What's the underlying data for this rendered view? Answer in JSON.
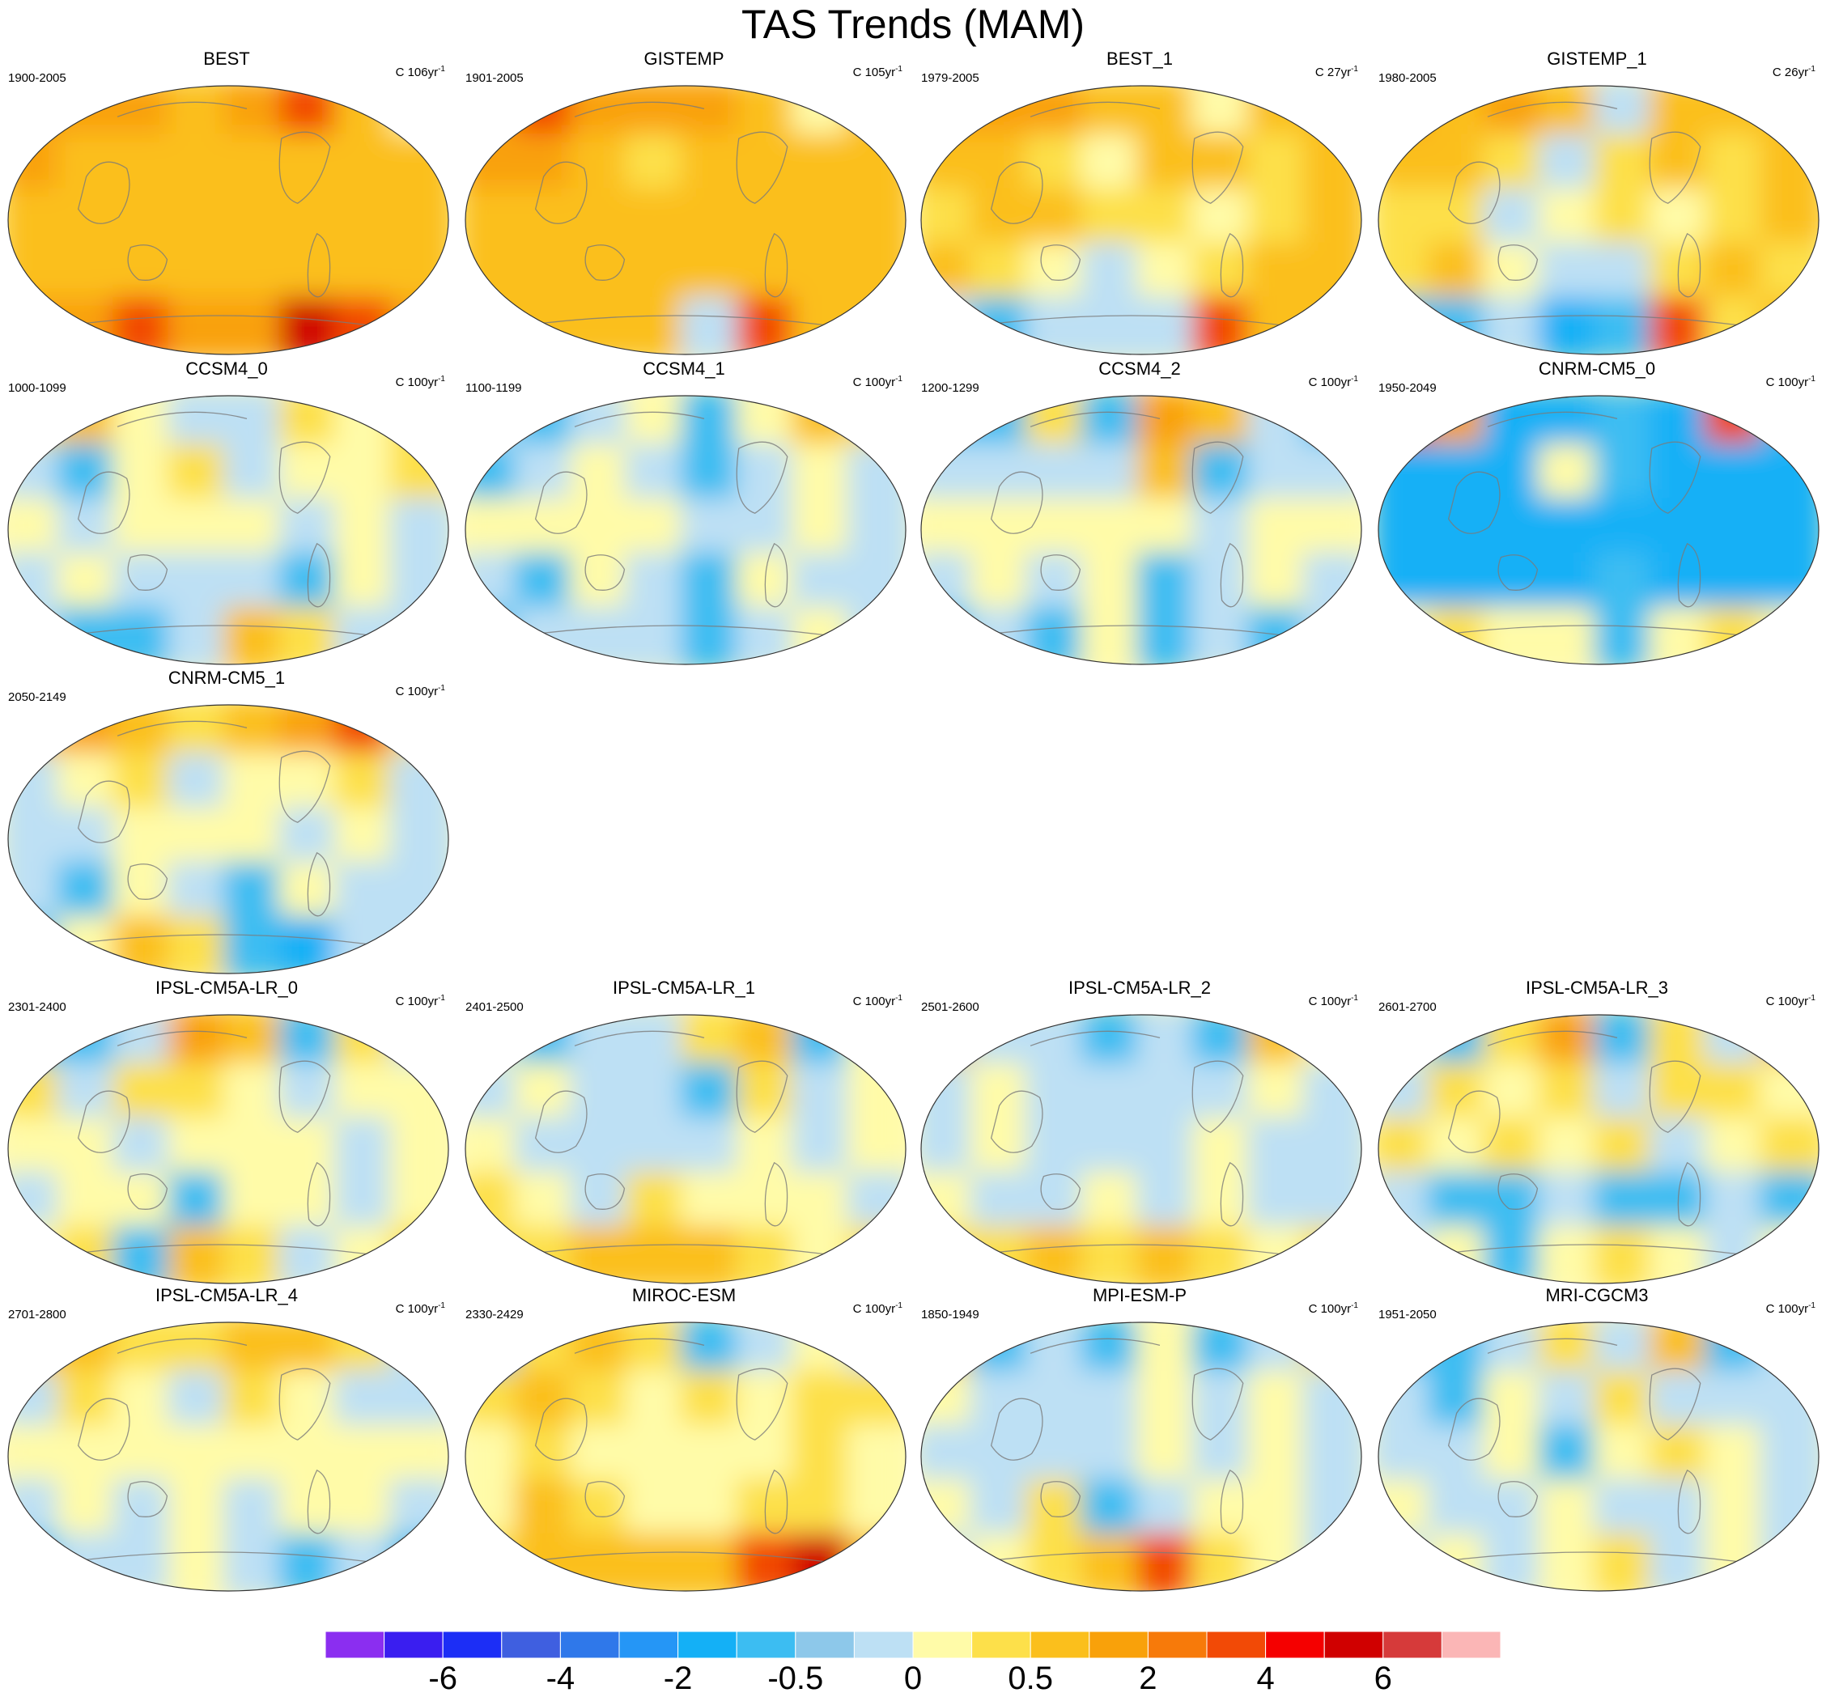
{
  "title": "TAS Trends (MAM)",
  "panels": [
    {
      "name": "BEST",
      "period": "1900-2005",
      "units": "C 106yr",
      "units_exp": "-1",
      "field": [
        [
          "4",
          "4",
          "4",
          "3",
          "4",
          "5",
          "3",
          "1"
        ],
        [
          "4",
          "3",
          "3",
          "3",
          "3",
          "3",
          "3",
          "3"
        ],
        [
          "3",
          "3",
          "3",
          "3",
          "3",
          "3",
          "3",
          "3"
        ],
        [
          "3",
          "3",
          "3",
          "3",
          "3",
          "3",
          "3",
          "3"
        ],
        [
          "4",
          "4",
          "5",
          "4",
          "4",
          "6",
          "5",
          "4"
        ]
      ],
      "polar": "strong"
    },
    {
      "name": "GISTEMP",
      "period": "1901-2005",
      "units": "C 105yr",
      "units_exp": "-1",
      "field": [
        [
          "4",
          "5",
          "4",
          "4",
          "4",
          "3",
          "1",
          "3"
        ],
        [
          "4",
          "4",
          "3",
          "2",
          "3",
          "3",
          "3",
          "3"
        ],
        [
          "3",
          "3",
          "3",
          "3",
          "3",
          "3",
          "3",
          "3"
        ],
        [
          "3",
          "3",
          "3",
          "3",
          "3",
          "3",
          "3",
          "3"
        ],
        [
          "3",
          "3",
          "3",
          "3",
          "-1",
          "5",
          "3",
          "3"
        ]
      ],
      "polar": "strong"
    },
    {
      "name": "BEST_1",
      "period": "1979-2005",
      "units": "C 27yr",
      "units_exp": "-1",
      "field": [
        [
          "4",
          "4",
          "4",
          "3",
          "3",
          "1",
          "3",
          "3"
        ],
        [
          "3",
          "3",
          "2",
          "1",
          "3",
          "3",
          "2",
          "3"
        ],
        [
          "2",
          "3",
          "3",
          "2",
          "2",
          "1",
          "2",
          "3"
        ],
        [
          "3",
          "2",
          "1",
          "-1",
          "1",
          "2",
          "3",
          "3"
        ],
        [
          "-1",
          "-2",
          "-1",
          "-1",
          "-1",
          "5",
          "3",
          "3"
        ]
      ],
      "polar": "mixed"
    },
    {
      "name": "GISTEMP_1",
      "period": "1980-2005",
      "units": "C 26yr",
      "units_exp": "-1",
      "field": [
        [
          "4",
          "3",
          "4",
          "3",
          "-1",
          "3",
          "3",
          "3"
        ],
        [
          "3",
          "3",
          "2",
          "-1",
          "2",
          "3",
          "2",
          "3"
        ],
        [
          "2",
          "2",
          "-1",
          "1",
          "2",
          "1",
          "2",
          "3"
        ],
        [
          "2",
          "3",
          "1",
          "-1",
          "-1",
          "2",
          "3",
          "2"
        ],
        [
          "-2",
          "-2",
          "-1",
          "-3",
          "-2",
          "5",
          "2",
          "3"
        ]
      ],
      "polar": "mixed"
    },
    {
      "name": "CCSM4_0",
      "period": "1000-1099",
      "units": "C 100yr",
      "units_exp": "-1",
      "field": [
        [
          "2",
          "3",
          "1",
          "-1",
          "-1",
          "2",
          "1",
          "2"
        ],
        [
          "-1",
          "-2",
          "1",
          "2",
          "-1",
          "1",
          "1",
          "2"
        ],
        [
          "1",
          "-1",
          "1",
          "1",
          "1",
          "-1",
          "1",
          "-1"
        ],
        [
          "-1",
          "1",
          "-1",
          "-1",
          "-1",
          "-2",
          "1",
          "-1"
        ],
        [
          "-1",
          "-2",
          "-2",
          "-1",
          "3",
          "2",
          "-1",
          "-1"
        ]
      ],
      "polar": "weak"
    },
    {
      "name": "CCSM4_1",
      "period": "1100-1199",
      "units": "C 100yr",
      "units_exp": "-1",
      "field": [
        [
          "-1",
          "-2",
          "-1",
          "1",
          "-2",
          "1",
          "3",
          "2"
        ],
        [
          "-2",
          "-1",
          "1",
          "-1",
          "-2",
          "-1",
          "1",
          "-1"
        ],
        [
          "1",
          "1",
          "1",
          "1",
          "-1",
          "-1",
          "1",
          "-1"
        ],
        [
          "-1",
          "-2",
          "1",
          "-1",
          "-2",
          "1",
          "-1",
          "-1"
        ],
        [
          "-2",
          "-1",
          "-1",
          "-1",
          "-2",
          "-1",
          "1",
          "-1"
        ]
      ],
      "polar": "weak"
    },
    {
      "name": "CCSM4_2",
      "period": "1200-1299",
      "units": "C 100yr",
      "units_exp": "-1",
      "field": [
        [
          "-2",
          "-2",
          "2",
          "-2",
          "4",
          "3",
          "-1",
          "-2"
        ],
        [
          "-1",
          "-1",
          "-1",
          "-1",
          "3",
          "-2",
          "-1",
          "-1"
        ],
        [
          "1",
          "1",
          "1",
          "1",
          "1",
          "-1",
          "1",
          "1"
        ],
        [
          "-1",
          "1",
          "-1",
          "1",
          "-2",
          "-1",
          "1",
          "-1"
        ],
        [
          "-2",
          "-1",
          "-2",
          "1",
          "-2",
          "-1",
          "-2",
          "-1"
        ]
      ],
      "polar": "weak"
    },
    {
      "name": "CNRM-CM5_0",
      "period": "1950-2049",
      "units": "C 100yr",
      "units_exp": "-1",
      "field": [
        [
          "5",
          "4",
          "-3",
          "-3",
          "-2",
          "-3",
          "5",
          "-2"
        ],
        [
          "-3",
          "-3",
          "-3",
          "1",
          "-2",
          "-3",
          "-3",
          "-3"
        ],
        [
          "-3",
          "-3",
          "-3",
          "-3",
          "-3",
          "-3",
          "-3",
          "-3"
        ],
        [
          "-3",
          "-3",
          "-3",
          "-3",
          "-2",
          "-3",
          "-3",
          "-3"
        ],
        [
          "1",
          "2",
          "1",
          "1",
          "-2",
          "1",
          "2",
          "1"
        ]
      ],
      "polar": "weak"
    },
    {
      "name": "CNRM-CM5_1",
      "period": "2050-2149",
      "units": "C 100yr",
      "units_exp": "-1",
      "field": [
        [
          "3",
          "4",
          "3",
          "2",
          "3",
          "4",
          "5",
          "2"
        ],
        [
          "-1",
          "1",
          "2",
          "-1",
          "1",
          "1",
          "2",
          "-1"
        ],
        [
          "-1",
          "-1",
          "1",
          "1",
          "1",
          "-1",
          "1",
          "-1"
        ],
        [
          "-1",
          "-2",
          "1",
          "-1",
          "-2",
          "1",
          "-1",
          "-1"
        ],
        [
          "-2",
          "1",
          "3",
          "2",
          "-2",
          "-3",
          "-1",
          "-1"
        ]
      ],
      "polar": "weak"
    },
    {
      "name": "IPSL-CM5A-LR_0",
      "period": "2301-2400",
      "units": "C 100yr",
      "units_exp": "-1",
      "field": [
        [
          "-2",
          "-2",
          "-1",
          "4",
          "3",
          "-2",
          "2",
          "-1"
        ],
        [
          "2",
          "-1",
          "2",
          "2",
          "1",
          "-1",
          "1",
          "1"
        ],
        [
          "1",
          "1",
          "-1",
          "1",
          "1",
          "1",
          "-1",
          "1"
        ],
        [
          "-1",
          "1",
          "1",
          "-2",
          "1",
          "1",
          "-1",
          "1"
        ],
        [
          "1",
          "2",
          "-2",
          "3",
          "2",
          "-1",
          "1",
          "2"
        ]
      ],
      "polar": "weak"
    },
    {
      "name": "IPSL-CM5A-LR_1",
      "period": "2401-2500",
      "units": "C 100yr",
      "units_exp": "-1",
      "field": [
        [
          "1",
          "-2",
          "-1",
          "-1",
          "2",
          "3",
          "-2",
          "1"
        ],
        [
          "-1",
          "1",
          "-1",
          "-1",
          "-2",
          "2",
          "-1",
          "1"
        ],
        [
          "1",
          "-1",
          "-1",
          "-1",
          "-1",
          "1",
          "-1",
          "1"
        ],
        [
          "2",
          "1",
          "-1",
          "2",
          "1",
          "1",
          "1",
          "-1"
        ],
        [
          "2",
          "2",
          "3",
          "3",
          "3",
          "2",
          "1",
          "2"
        ]
      ],
      "polar": "weak"
    },
    {
      "name": "IPSL-CM5A-LR_2",
      "period": "2501-2600",
      "units": "C 100yr",
      "units_exp": "-1",
      "field": [
        [
          "3",
          "-1",
          "-1",
          "-2",
          "-1",
          "-2",
          "3",
          "1"
        ],
        [
          "-1",
          "1",
          "-1",
          "-1",
          "-1",
          "-1",
          "1",
          "-1"
        ],
        [
          "-1",
          "1",
          "-1",
          "-1",
          "-1",
          "1",
          "-1",
          "-1"
        ],
        [
          "1",
          "-1",
          "-1",
          "1",
          "-1",
          "1",
          "-1",
          "-1"
        ],
        [
          "2",
          "2",
          "3",
          "2",
          "3",
          "2",
          "1",
          "2"
        ]
      ],
      "polar": "weak"
    },
    {
      "name": "IPSL-CM5A-LR_3",
      "period": "2601-2700",
      "units": "C 100yr",
      "units_exp": "-1",
      "field": [
        [
          "1",
          "-2",
          "2",
          "4",
          "-2",
          "2",
          "-1",
          "3"
        ],
        [
          "-1",
          "2",
          "1",
          "2",
          "-1",
          "2",
          "2",
          "1"
        ],
        [
          "2",
          "1",
          "2",
          "1",
          "2",
          "-1",
          "1",
          "2"
        ],
        [
          "-1",
          "-2",
          "-2",
          "-1",
          "-2",
          "-2",
          "-1",
          "-2"
        ],
        [
          "-1",
          "1",
          "-2",
          "1",
          "2",
          "1",
          "-1",
          "1"
        ]
      ],
      "polar": "weak"
    },
    {
      "name": "IPSL-CM5A-LR_4",
      "period": "2701-2800",
      "units": "C 100yr",
      "units_exp": "-1",
      "field": [
        [
          "3",
          "3",
          "2",
          "2",
          "3",
          "3",
          "2",
          "-1"
        ],
        [
          "-1",
          "2",
          "1",
          "-1",
          "2",
          "1",
          "-1",
          "-1"
        ],
        [
          "1",
          "1",
          "1",
          "1",
          "1",
          "1",
          "1",
          "1"
        ],
        [
          "-1",
          "1",
          "-1",
          "1",
          "-1",
          "1",
          "1",
          "-1"
        ],
        [
          "-2",
          "-1",
          "-1",
          "1",
          "-1",
          "-2",
          "-1",
          "-2"
        ]
      ],
      "polar": "weak"
    },
    {
      "name": "MIROC-ESM",
      "period": "2330-2429",
      "units": "C 100yr",
      "units_exp": "-1",
      "field": [
        [
          "-2",
          "2",
          "3",
          "2",
          "-2",
          "-1",
          "1",
          "-1"
        ],
        [
          "2",
          "3",
          "2",
          "1",
          "2",
          "1",
          "2",
          "2"
        ],
        [
          "1",
          "2",
          "1",
          "1",
          "1",
          "1",
          "2",
          "1"
        ],
        [
          "1",
          "3",
          "2",
          "1",
          "1",
          "2",
          "2",
          "1"
        ],
        [
          "2",
          "3",
          "3",
          "3",
          "3",
          "5",
          "6",
          "3"
        ]
      ],
      "polar": "weak"
    },
    {
      "name": "MPI-ESM-P",
      "period": "1850-1949",
      "units": "C 100yr",
      "units_exp": "-1",
      "field": [
        [
          "3",
          "-2",
          "-1",
          "-2",
          "1",
          "-2",
          "-1",
          "2"
        ],
        [
          "1",
          "-1",
          "-1",
          "-1",
          "1",
          "-1",
          "1",
          "-1"
        ],
        [
          "-1",
          "-1",
          "-1",
          "-1",
          "1",
          "-1",
          "1",
          "-1"
        ],
        [
          "1",
          "-1",
          "2",
          "-2",
          "-1",
          "1",
          "1",
          "-1"
        ],
        [
          "-1",
          "1",
          "2",
          "3",
          "5",
          "2",
          "1",
          "-1"
        ]
      ],
      "polar": "weak"
    },
    {
      "name": "MRI-CGCM3",
      "period": "1951-2050",
      "units": "C 100yr",
      "units_exp": "-1",
      "field": [
        [
          "-2",
          "-2",
          "-1",
          "2",
          "-1",
          "3",
          "-2",
          "-1"
        ],
        [
          "-1",
          "-2",
          "1",
          "-1",
          "2",
          "-1",
          "-1",
          "-1"
        ],
        [
          "-1",
          "-1",
          "1",
          "-2",
          "1",
          "2",
          "1",
          "-1"
        ],
        [
          "1",
          "-1",
          "-1",
          "1",
          "-1",
          "-1",
          "1",
          "-1"
        ],
        [
          "-1",
          "1",
          "-1",
          "1",
          "2",
          "-1",
          "1",
          "-1"
        ]
      ],
      "polar": "weak"
    }
  ],
  "colorbar": {
    "colors": [
      "#8b2ef0",
      "#3a1ef0",
      "#1c2ef6",
      "#3f5fe0",
      "#2f78ea",
      "#2596f6",
      "#14b0f6",
      "#3cbdf2",
      "#8dc8ea",
      "#bde0f4",
      "#fffba8",
      "#fde04a",
      "#fbbf1c",
      "#f9a10a",
      "#f77a0a",
      "#f24a06",
      "#f50000",
      "#d00000",
      "#d63a3a",
      "#fbb6b6"
    ],
    "labels": [
      "-6",
      "-4",
      "-2",
      "-0.5",
      "0",
      "0.5",
      "2",
      "4",
      "6"
    ]
  },
  "legend_level_map": {
    "-9": "#8b2ef0",
    "-8": "#3a1ef0",
    "-7": "#1c2ef6",
    "-6": "#3f5fe0",
    "-5": "#2f78ea",
    "-4": "#2596f6",
    "-3": "#14b0f6",
    "-2": "#3cbdf2",
    "-1": "#bde0f4",
    "1": "#fffba8",
    "2": "#fde04a",
    "3": "#fbbf1c",
    "4": "#f9a10a",
    "5": "#f24a06",
    "6": "#d00000",
    "7": "#fbb6b6"
  }
}
